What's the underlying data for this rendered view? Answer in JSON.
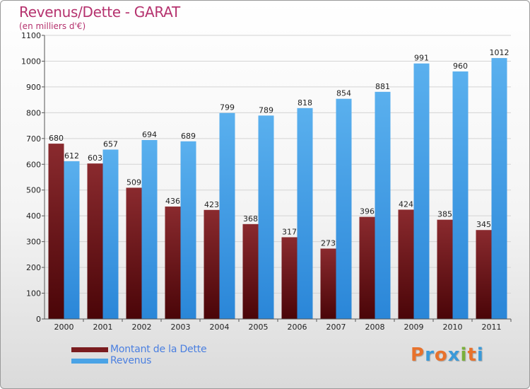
{
  "header": {
    "title": "Revenus/Dette - GARAT",
    "subtitle": "(en milliers d'€)"
  },
  "legend": {
    "items": [
      {
        "label": "Montant de la Dette",
        "color": "#7a1c1f"
      },
      {
        "label": "Revenus",
        "color": "#4aa3e6"
      }
    ]
  },
  "logo": {
    "letters": [
      "P",
      "r",
      "o",
      "x",
      "i",
      "t",
      "i"
    ],
    "colors": [
      "#e8722c",
      "#3a9ad9",
      "#e8722c",
      "#3a9ad9",
      "#7ab03a",
      "#e8722c",
      "#3a9ad9"
    ]
  },
  "chart_data": {
    "type": "bar",
    "title": "Revenus/Dette - GARAT",
    "subtitle": "(en milliers d'€)",
    "categories": [
      "2000",
      "2001",
      "2002",
      "2003",
      "2004",
      "2005",
      "2006",
      "2007",
      "2008",
      "2009",
      "2010",
      "2011"
    ],
    "series": [
      {
        "name": "Montant de la Dette",
        "color": "#7a1c1f",
        "values": [
          680,
          603,
          509,
          436,
          423,
          368,
          317,
          273,
          396,
          424,
          385,
          345
        ]
      },
      {
        "name": "Revenus",
        "color": "#4aa3e6",
        "values": [
          612,
          657,
          694,
          689,
          799,
          789,
          818,
          854,
          881,
          991,
          960,
          1012
        ]
      }
    ],
    "yticks": [
      0,
      100,
      200,
      300,
      400,
      500,
      600,
      700,
      800,
      900,
      1000,
      1100
    ],
    "ylim": [
      0,
      1100
    ],
    "grid": true,
    "legend_position": "bottom-left"
  }
}
